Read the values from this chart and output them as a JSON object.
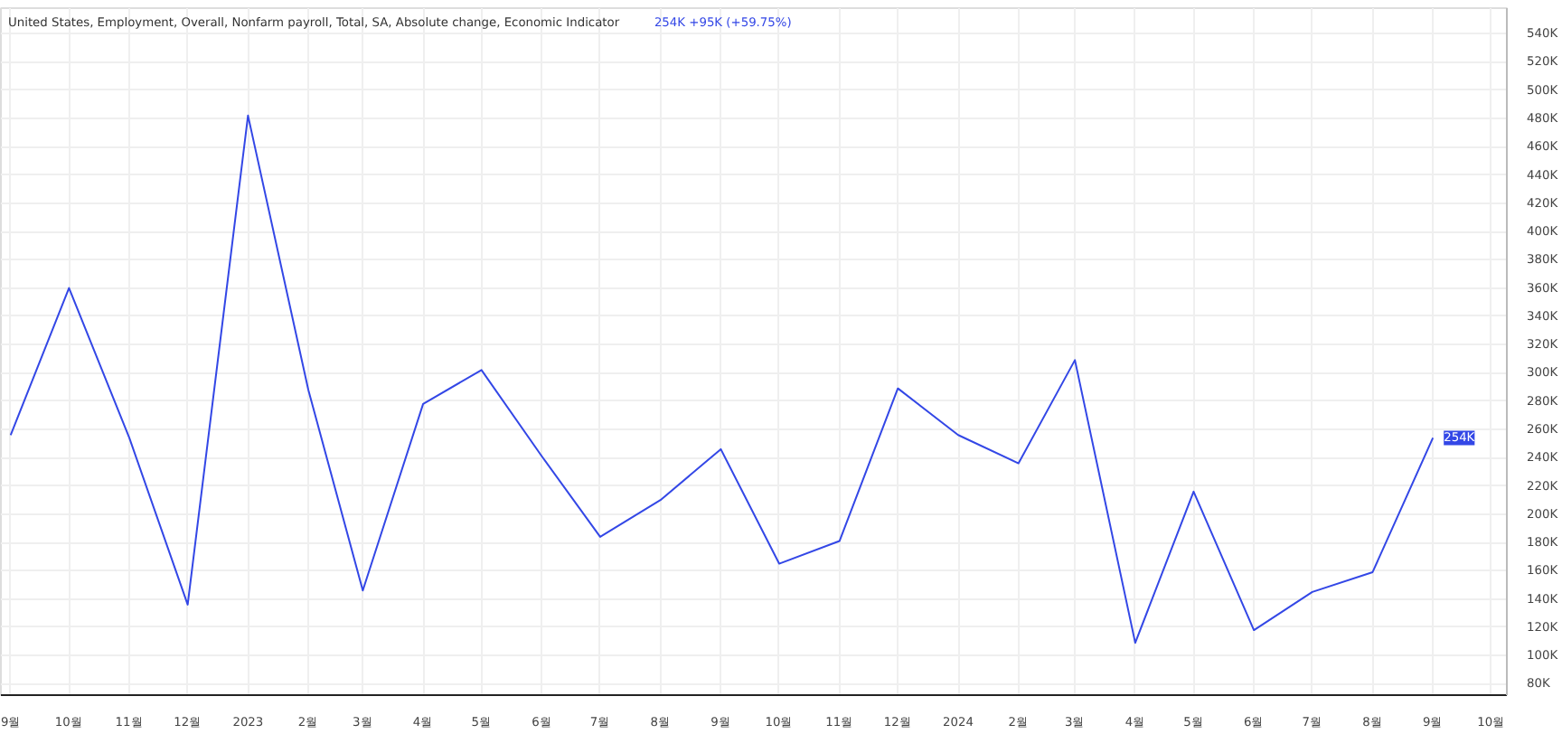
{
  "chart_data": {
    "type": "line",
    "title": "United States, Employment, Overall, Nonfarm payroll, Total, SA, Absolute change, Economic Indicator",
    "subtitle": "254K +95K (+59.75%)",
    "x": [
      "2022-09",
      "2022-10",
      "2022-11",
      "2022-12",
      "2023-01",
      "2023-02",
      "2023-03",
      "2023-04",
      "2023-05",
      "2023-06",
      "2023-07",
      "2023-08",
      "2023-09",
      "2023-10",
      "2023-11",
      "2023-12",
      "2024-01",
      "2024-02",
      "2024-03",
      "2024-04",
      "2024-05",
      "2024-06",
      "2024-07",
      "2024-08",
      "2024-09"
    ],
    "series": [
      {
        "color": "#3347e6",
        "values": [
          256,
          360,
          254,
          136,
          482,
          288,
          146,
          278,
          302,
          241,
          184,
          210,
          246,
          165,
          181,
          289,
          256,
          236,
          309,
          109,
          216,
          118,
          145,
          159,
          254
        ]
      }
    ],
    "annotations": [
      {
        "text": "254K",
        "x": "2024-09",
        "y": 254
      }
    ],
    "xlim": [
      "2022-08-27",
      "2024-10-09"
    ],
    "xticks": [
      {
        "value": "2022-09",
        "label": "9월"
      },
      {
        "value": "2022-10",
        "label": "10월"
      },
      {
        "value": "2022-11",
        "label": "11월"
      },
      {
        "value": "2022-12",
        "label": "12월"
      },
      {
        "value": "2023-01",
        "label": "2023"
      },
      {
        "value": "2023-02",
        "label": "2월"
      },
      {
        "value": "2023-03",
        "label": "3월"
      },
      {
        "value": "2023-04",
        "label": "4월"
      },
      {
        "value": "2023-05",
        "label": "5월"
      },
      {
        "value": "2023-06",
        "label": "6월"
      },
      {
        "value": "2023-07",
        "label": "7월"
      },
      {
        "value": "2023-08",
        "label": "8월"
      },
      {
        "value": "2023-09",
        "label": "9월"
      },
      {
        "value": "2023-10",
        "label": "10월"
      },
      {
        "value": "2023-11",
        "label": "11월"
      },
      {
        "value": "2023-12",
        "label": "12월"
      },
      {
        "value": "2024-01",
        "label": "2024"
      },
      {
        "value": "2024-02",
        "label": "2월"
      },
      {
        "value": "2024-03",
        "label": "3월"
      },
      {
        "value": "2024-04",
        "label": "4월"
      },
      {
        "value": "2024-05",
        "label": "5월"
      },
      {
        "value": "2024-06",
        "label": "6월"
      },
      {
        "value": "2024-07",
        "label": "7월"
      },
      {
        "value": "2024-08",
        "label": "8월"
      },
      {
        "value": "2024-09",
        "label": "9월"
      },
      {
        "value": "2024-10",
        "label": "10월"
      }
    ],
    "ylim": [
      72,
      558
    ],
    "yticks": [
      {
        "value": 80,
        "label": "80K"
      },
      {
        "value": 100,
        "label": "100K"
      },
      {
        "value": 120,
        "label": "120K"
      },
      {
        "value": 140,
        "label": "140K"
      },
      {
        "value": 160,
        "label": "160K"
      },
      {
        "value": 180,
        "label": "180K"
      },
      {
        "value": 200,
        "label": "200K"
      },
      {
        "value": 220,
        "label": "220K"
      },
      {
        "value": 240,
        "label": "240K"
      },
      {
        "value": 260,
        "label": "260K"
      },
      {
        "value": 280,
        "label": "280K"
      },
      {
        "value": 300,
        "label": "300K"
      },
      {
        "value": 320,
        "label": "320K"
      },
      {
        "value": 340,
        "label": "340K"
      },
      {
        "value": 360,
        "label": "360K"
      },
      {
        "value": 380,
        "label": "380K"
      },
      {
        "value": 400,
        "label": "400K"
      },
      {
        "value": 420,
        "label": "420K"
      },
      {
        "value": 440,
        "label": "440K"
      },
      {
        "value": 460,
        "label": "460K"
      },
      {
        "value": 480,
        "label": "480K"
      },
      {
        "value": 500,
        "label": "500K"
      },
      {
        "value": 520,
        "label": "520K"
      },
      {
        "value": 540,
        "label": "540K"
      }
    ],
    "grid": true
  }
}
